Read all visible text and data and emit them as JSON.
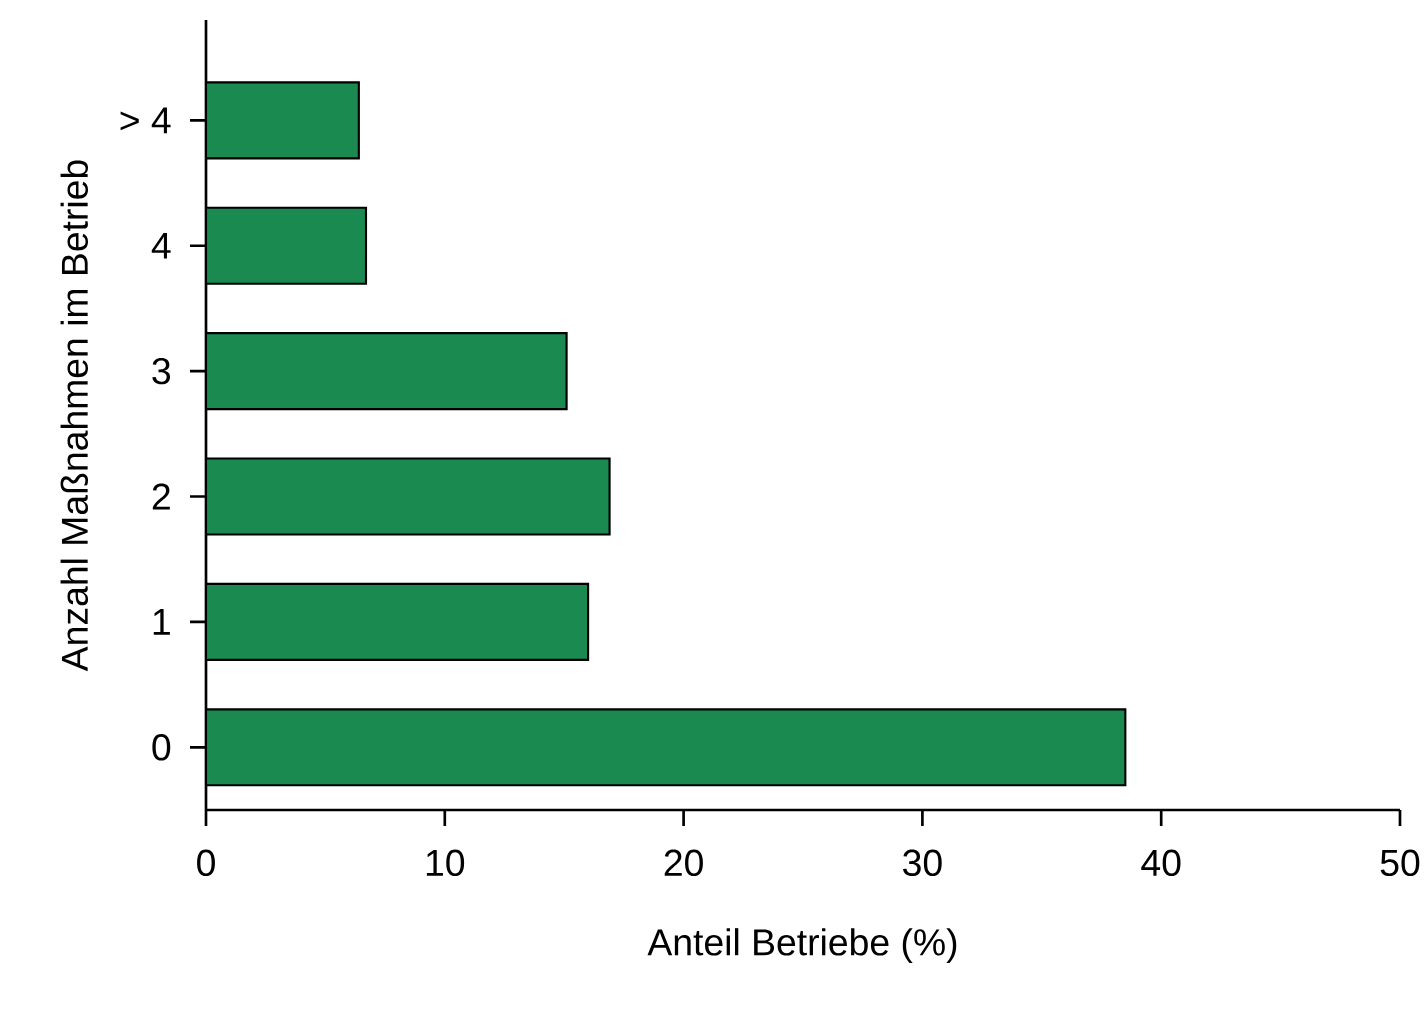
{
  "chart_data": {
    "type": "bar",
    "orientation": "horizontal",
    "categories": [
      "> 4",
      "4",
      "3",
      "2",
      "1",
      "0"
    ],
    "values": [
      6.4,
      6.7,
      15.1,
      16.9,
      16.0,
      38.5
    ],
    "color": "#1a8a50",
    "xlabel": "Anteil Betriebe (%)",
    "ylabel": "Anzahl Maßnahmen im Betrieb",
    "xlim": [
      0,
      50
    ],
    "xticks": [
      0,
      10,
      20,
      30,
      40,
      50
    ]
  }
}
